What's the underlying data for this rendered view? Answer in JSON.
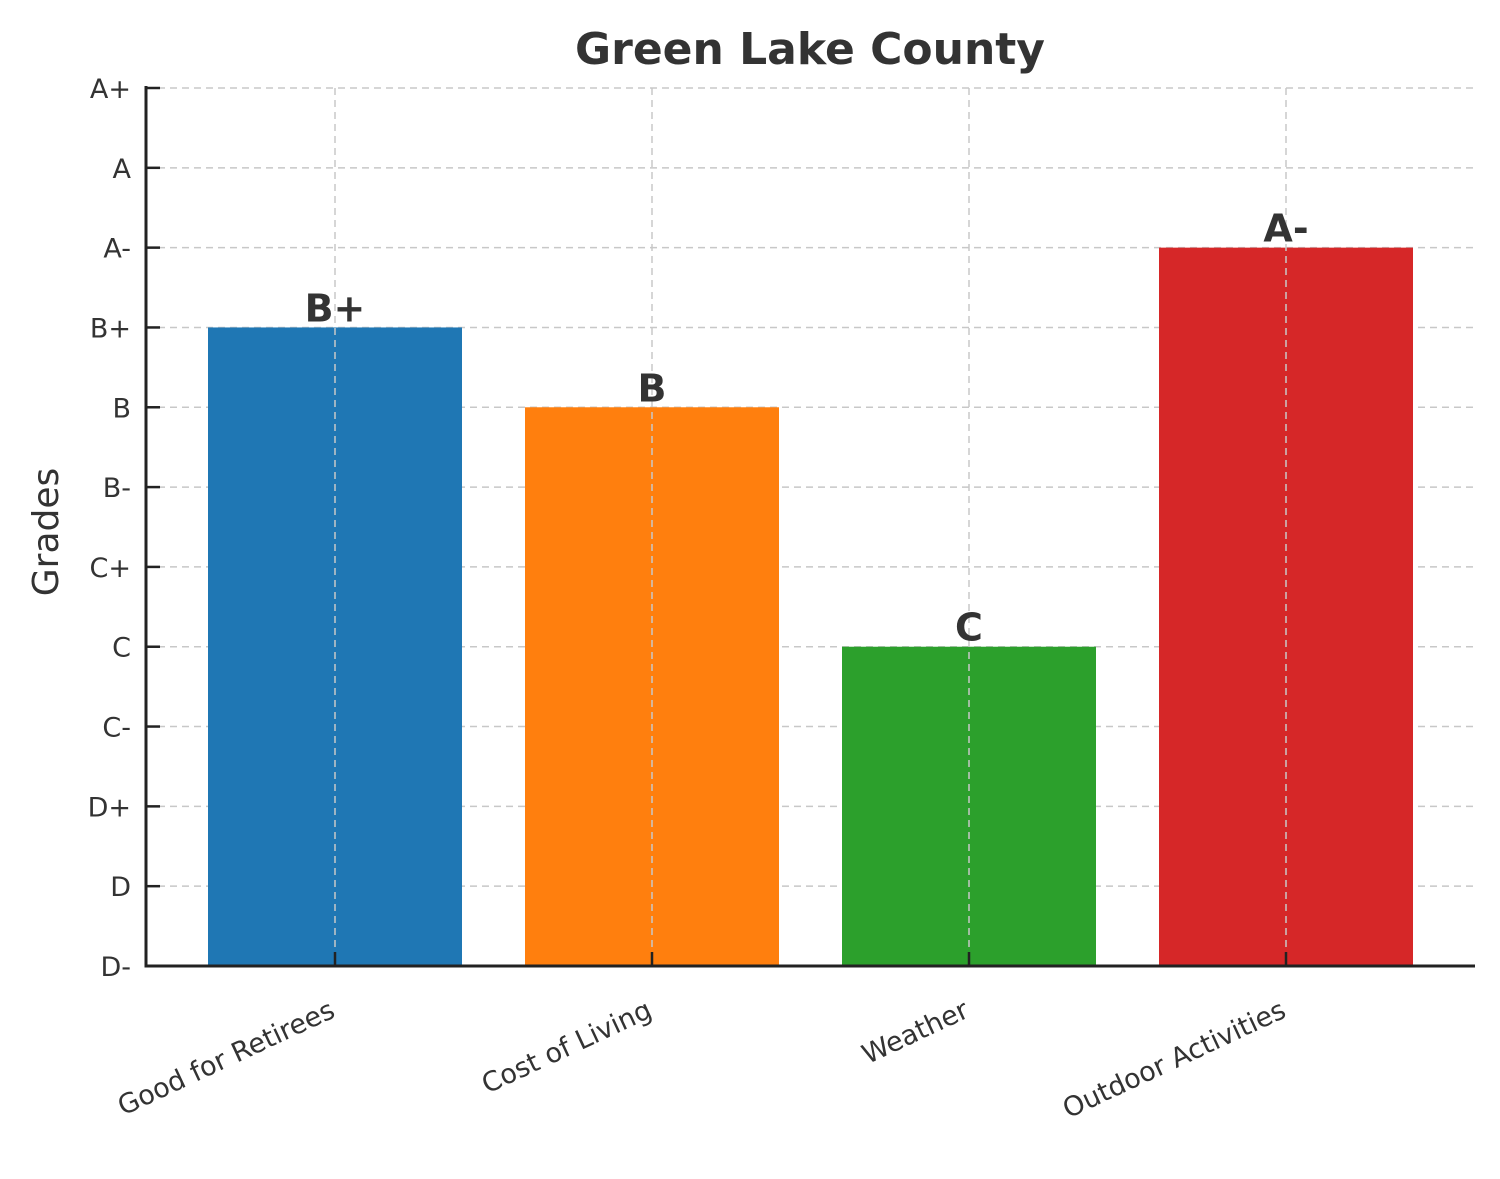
{
  "chart_data": {
    "type": "bar",
    "title": "Green Lake County",
    "xlabel": "",
    "ylabel": "Grades",
    "grade_scale": [
      "D-",
      "D",
      "D+",
      "C-",
      "C",
      "C+",
      "B-",
      "B",
      "B+",
      "A-",
      "A",
      "A+"
    ],
    "categories": [
      "Good for Retirees",
      "Cost of Living",
      "Weather",
      "Outdoor Activities"
    ],
    "values": [
      "B+",
      "B",
      "C",
      "A-"
    ],
    "data_labels": [
      "B+",
      "B",
      "C",
      "A-"
    ],
    "colors": [
      "#1f77b4",
      "#ff7f0e",
      "#2ca02c",
      "#d62728"
    ],
    "ylim": [
      "D-",
      "A+"
    ],
    "grid": true,
    "legend": "none"
  }
}
